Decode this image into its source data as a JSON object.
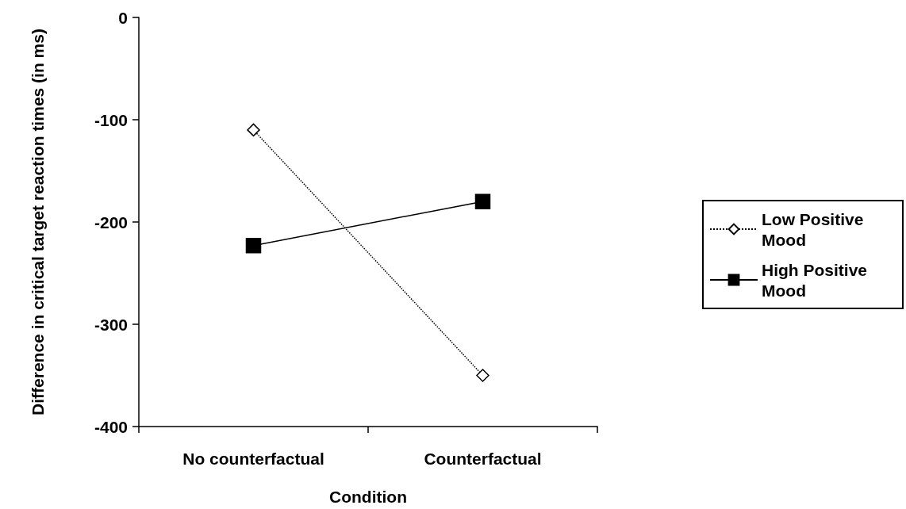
{
  "chart_data": {
    "type": "line",
    "xlabel": "Condition",
    "ylabel": "Difference in critical target reaction times (in ms)",
    "categories": [
      "No counterfactual",
      "Counterfactual"
    ],
    "series": [
      {
        "name": "Low Positive Mood",
        "color": "#000000",
        "values": [
          -110,
          -350
        ],
        "marker": "diamond",
        "line_style": "dotted"
      },
      {
        "name": "High Positive Mood",
        "color": "#000000",
        "values": [
          -223,
          -180
        ],
        "marker": "square",
        "line_style": "solid"
      }
    ],
    "ylim": [
      -400,
      0
    ],
    "yticks": [
      -400,
      -300,
      -200,
      -100,
      0
    ],
    "grid": false,
    "legend": "right"
  }
}
